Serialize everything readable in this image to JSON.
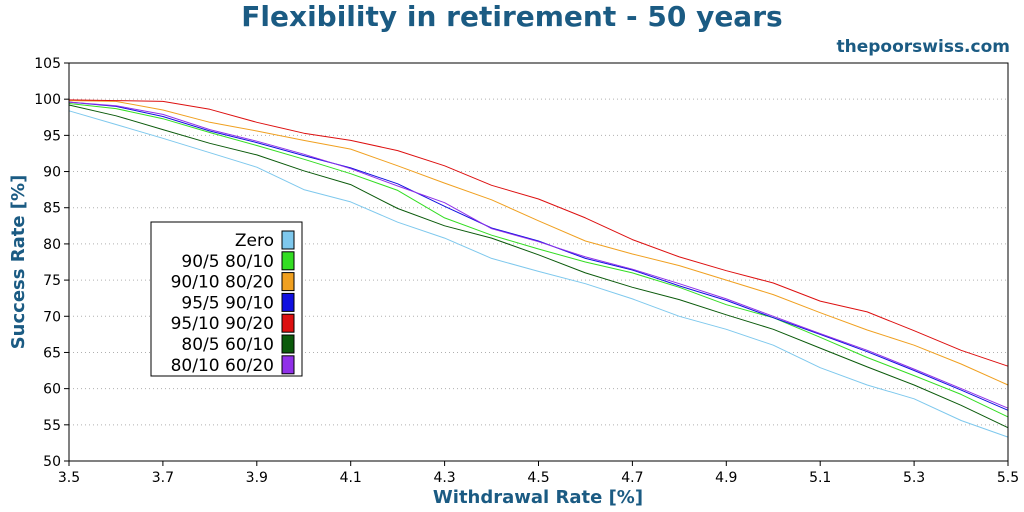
{
  "chart_data": {
    "type": "line",
    "title": "Flexibility in retirement - 50 years",
    "brand": "thepoorswiss.com",
    "xlabel": "Withdrawal Rate [%]",
    "ylabel": "Success Rate [%]",
    "xlim": [
      3.5,
      5.5
    ],
    "ylim": [
      50,
      105
    ],
    "x_ticks": [
      "3.5",
      "3.7",
      "3.9",
      "4.1",
      "4.3",
      "4.5",
      "4.7",
      "4.9",
      "5.1",
      "5.3",
      "5.5"
    ],
    "y_ticks": [
      "50",
      "55",
      "60",
      "65",
      "70",
      "75",
      "80",
      "85",
      "90",
      "95",
      "100",
      "105"
    ],
    "grid": "horizontal-dotted",
    "legend_position": "left-center",
    "x": [
      3.5,
      3.6,
      3.7,
      3.8,
      3.9,
      4.0,
      4.1,
      4.2,
      4.3,
      4.4,
      4.5,
      4.6,
      4.7,
      4.8,
      4.9,
      5.0,
      5.1,
      5.2,
      5.3,
      5.4,
      5.5
    ],
    "series": [
      {
        "name": "Zero",
        "color": "#7ec8ed",
        "values": [
          98.4,
          96.5,
          94.6,
          92.6,
          90.6,
          87.5,
          85.8,
          83.0,
          80.8,
          78.0,
          76.2,
          74.5,
          72.4,
          70.0,
          68.2,
          66.0,
          62.9,
          60.5,
          58.6,
          55.6,
          53.3
        ]
      },
      {
        "name": "90/5 80/10",
        "color": "#33dd22",
        "values": [
          99.4,
          98.7,
          97.3,
          95.4,
          93.6,
          91.7,
          89.7,
          87.4,
          83.6,
          81.2,
          79.3,
          77.5,
          76.0,
          74.0,
          71.6,
          69.8,
          67.1,
          64.3,
          61.8,
          59.2,
          56.1
        ]
      },
      {
        "name": "90/10 80/20",
        "color": "#f0a020",
        "values": [
          99.8,
          99.7,
          98.5,
          96.8,
          95.6,
          94.3,
          93.1,
          90.8,
          88.4,
          86.1,
          83.2,
          80.4,
          78.6,
          77.0,
          75.0,
          73.0,
          70.5,
          68.1,
          66.0,
          63.4,
          60.5
        ]
      },
      {
        "name": "95/5 90/10",
        "color": "#1010e0",
        "values": [
          99.6,
          99.0,
          97.6,
          95.6,
          94.0,
          92.2,
          90.5,
          88.3,
          85.2,
          82.2,
          80.4,
          78.0,
          76.4,
          74.2,
          72.2,
          69.8,
          67.5,
          65.1,
          62.5,
          59.8,
          57.0
        ]
      },
      {
        "name": "95/10 90/20",
        "color": "#dd1010",
        "values": [
          99.9,
          99.8,
          99.7,
          98.6,
          96.8,
          95.3,
          94.3,
          92.9,
          90.8,
          88.1,
          86.2,
          83.6,
          80.6,
          78.2,
          76.3,
          74.6,
          72.1,
          70.6,
          68.0,
          65.3,
          63.1
        ]
      },
      {
        "name": "80/5 60/10",
        "color": "#0b5a0b",
        "values": [
          99.2,
          97.7,
          95.8,
          93.9,
          92.3,
          90.1,
          88.2,
          84.9,
          82.5,
          80.8,
          78.5,
          76.0,
          74.0,
          72.3,
          70.2,
          68.2,
          65.6,
          63.0,
          60.5,
          57.7,
          54.6
        ]
      },
      {
        "name": "80/10 60/20",
        "color": "#9030e8",
        "values": [
          99.6,
          99.1,
          97.9,
          95.8,
          94.2,
          92.4,
          90.4,
          88.0,
          85.7,
          82.1,
          80.3,
          78.2,
          76.5,
          74.5,
          72.4,
          70.0,
          67.6,
          65.3,
          62.7,
          60.0,
          57.3
        ]
      }
    ]
  }
}
